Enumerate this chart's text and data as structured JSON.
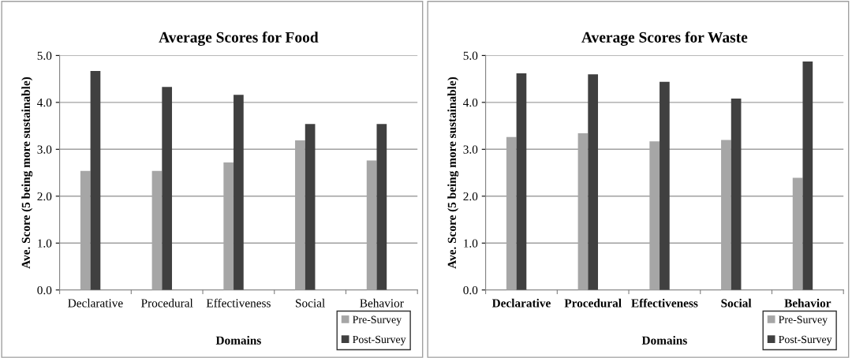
{
  "chart_data": [
    {
      "type": "bar",
      "title": "Average Scores for Food",
      "xlabel": "Domains",
      "ylabel": "Ave. Score (5 being more sustainable)",
      "categories": [
        "Declarative",
        "Procedural",
        "Effectiveness",
        "Social",
        "Behavior"
      ],
      "series": [
        {
          "name": "Pre-Survey",
          "color": "#a6a6a6",
          "values": [
            2.54,
            2.54,
            2.72,
            3.19,
            2.76
          ]
        },
        {
          "name": "Post-Survey",
          "color": "#404040",
          "values": [
            4.67,
            4.33,
            4.16,
            3.54,
            3.54
          ]
        }
      ],
      "ylim": [
        0,
        5
      ],
      "yticks": [
        {
          "value": 0,
          "label": "0.0"
        },
        {
          "value": 1,
          "label": "1.0"
        },
        {
          "value": 2,
          "label": "2.0"
        },
        {
          "value": 3,
          "label": "3.0"
        },
        {
          "value": 4,
          "label": "4.0"
        },
        {
          "value": 5,
          "label": "5.0"
        }
      ],
      "grid": "y",
      "legend": "bottom right"
    },
    {
      "type": "bar",
      "title": "Average Scores for Waste",
      "xlabel": "Domains",
      "ylabel": "Ave. Score (5 being more sustainable)",
      "categories": [
        "Declarative",
        "Procedural",
        "Effectiveness",
        "Social",
        "Behavior"
      ],
      "series": [
        {
          "name": "Pre-Survey",
          "color": "#a6a6a6",
          "values": [
            3.26,
            3.34,
            3.17,
            3.2,
            2.39
          ]
        },
        {
          "name": "Post-Survey",
          "color": "#404040",
          "values": [
            4.62,
            4.6,
            4.44,
            4.08,
            4.87
          ]
        }
      ],
      "ylim": [
        0,
        5
      ],
      "yticks": [
        {
          "value": 0,
          "label": "0.0"
        },
        {
          "value": 1,
          "label": "1.0"
        },
        {
          "value": 2,
          "label": "2.0"
        },
        {
          "value": 3,
          "label": "3.0"
        },
        {
          "value": 4,
          "label": "4.0"
        },
        {
          "value": 5,
          "label": "5.0"
        }
      ],
      "grid": "y",
      "legend": "bottom right"
    }
  ]
}
